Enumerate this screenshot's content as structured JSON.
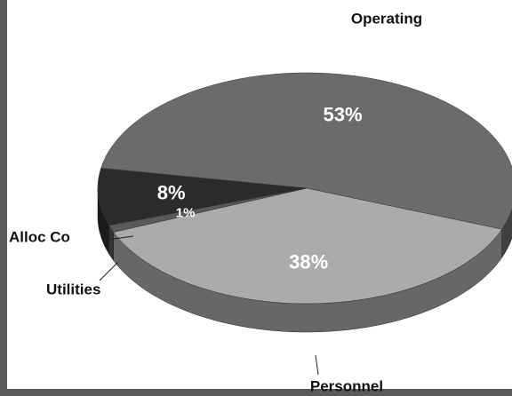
{
  "chart_data": {
    "type": "pie",
    "categories": [
      "Operating",
      "Personnel",
      "Alloc Co",
      "Utilities"
    ],
    "values": [
      53,
      38,
      1,
      8
    ],
    "value_labels": [
      "53%",
      "38%",
      "1%",
      "8%"
    ],
    "colors": [
      "#6b6b6b",
      "#ababab",
      "#595959",
      "#2b2b2b"
    ]
  }
}
